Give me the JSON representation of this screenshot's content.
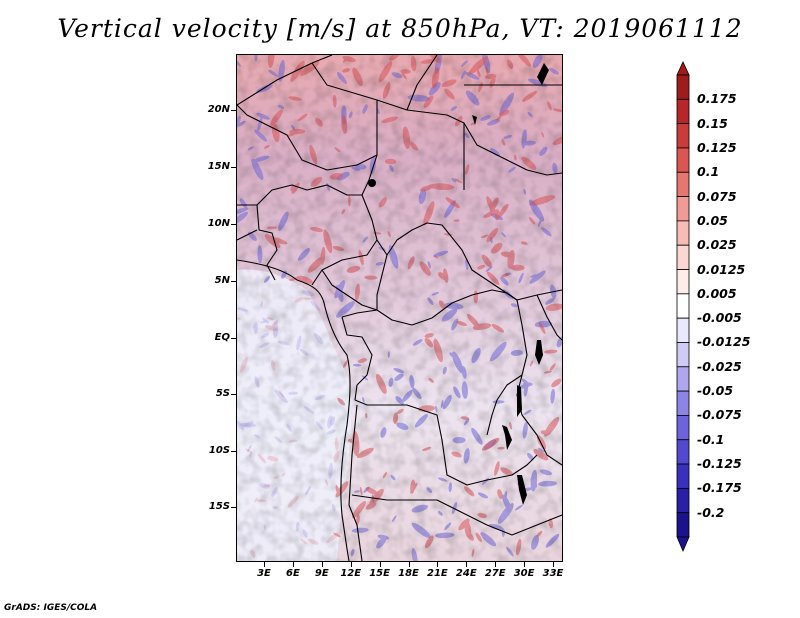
{
  "title": "Vertical velocity [m/s] at 850hPa, VT: 2019061112",
  "footer": "GrADS: IGES/COLA",
  "map": {
    "lat_labels": [
      "20N",
      "15N",
      "10N",
      "5N",
      "EQ",
      "5S",
      "10S",
      "15S"
    ],
    "lon_labels": [
      "3E",
      "6E",
      "9E",
      "12E",
      "15E",
      "18E",
      "21E",
      "24E",
      "27E",
      "30E",
      "33E"
    ]
  },
  "colorbar": {
    "labels": [
      "0.175",
      "0.15",
      "0.125",
      "0.1",
      "0.075",
      "0.05",
      "0.025",
      "0.0125",
      "0.005",
      "-0.005",
      "-0.0125",
      "-0.025",
      "-0.05",
      "-0.075",
      "-0.1",
      "-0.125",
      "-0.175",
      "-0.2"
    ],
    "colors": [
      "#a01c1c",
      "#b8262a",
      "#cc3b3a",
      "#dd5550",
      "#e87570",
      "#f29a93",
      "#f8bcb6",
      "#fbd6d2",
      "#fdecea",
      "#ffffff",
      "#eae8fc",
      "#cfcaf6",
      "#aea7f0",
      "#8c84e8",
      "#6d63df",
      "#5248d2",
      "#3a30c0",
      "#2a1fa8",
      "#1c1290"
    ]
  }
}
